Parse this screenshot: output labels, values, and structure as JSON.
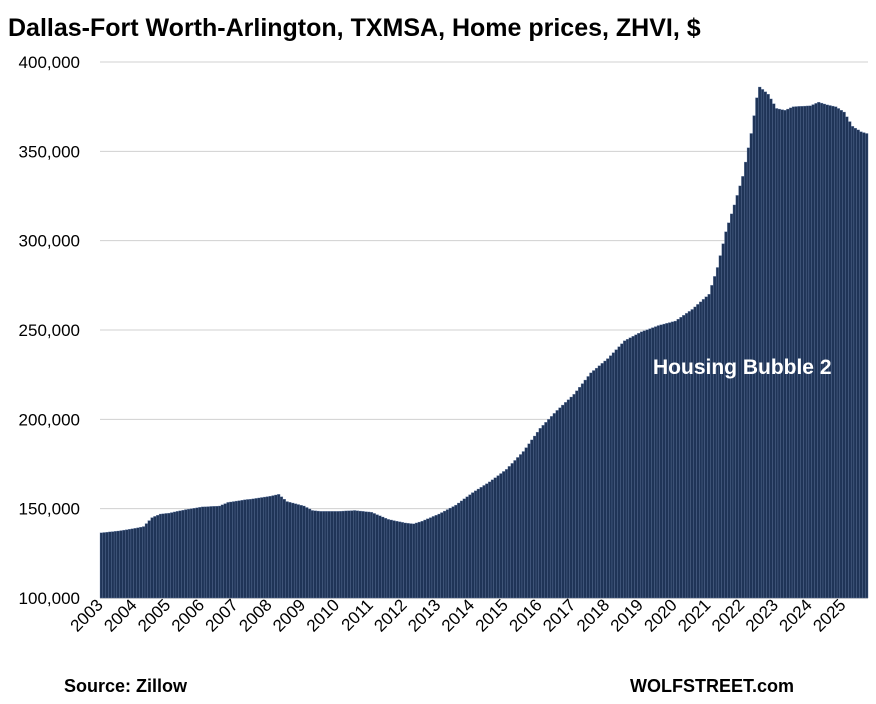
{
  "chart_data": {
    "type": "bar",
    "title": "Dallas-Fort Worth-Arlington, TXMSA, Home prices, ZHVI, $",
    "xlabel": "",
    "ylabel": "",
    "ylim": [
      100000,
      400000
    ],
    "y_ticks": [
      "400,000",
      "350,000",
      "300,000",
      "250,000",
      "200,000",
      "150,000",
      "100,000"
    ],
    "y_tick_values": [
      400000,
      350000,
      300000,
      250000,
      200000,
      150000,
      100000
    ],
    "x_ticks": [
      "2003",
      "2004",
      "2005",
      "2006",
      "2007",
      "2008",
      "2009",
      "2010",
      "2011",
      "2012",
      "2013",
      "2014",
      "2015",
      "2016",
      "2017",
      "2018",
      "2019",
      "2020",
      "2021",
      "2022",
      "2023",
      "2024",
      "2025"
    ],
    "x_range": [
      "2003-01",
      "2025-09"
    ],
    "frequency": "monthly",
    "grid": true,
    "bar_color": "#1f3457",
    "annotation": "Housing Bubble 2",
    "series": [
      {
        "points": [
          [
            "2003-01",
            136500
          ],
          [
            "2003-07",
            137500
          ],
          [
            "2004-01",
            139000
          ],
          [
            "2004-04",
            140000
          ],
          [
            "2004-07",
            145000
          ],
          [
            "2004-10",
            147000
          ],
          [
            "2005-01",
            147500
          ],
          [
            "2005-07",
            149500
          ],
          [
            "2006-01",
            151000
          ],
          [
            "2006-07",
            151500
          ],
          [
            "2006-10",
            153500
          ],
          [
            "2007-04",
            155000
          ],
          [
            "2007-07",
            155500
          ],
          [
            "2008-01",
            157000
          ],
          [
            "2008-04",
            158000
          ],
          [
            "2008-07",
            154000
          ],
          [
            "2009-01",
            151500
          ],
          [
            "2009-04",
            149000
          ],
          [
            "2009-07",
            148500
          ],
          [
            "2010-01",
            148500
          ],
          [
            "2010-07",
            149000
          ],
          [
            "2011-01",
            148000
          ],
          [
            "2011-07",
            144000
          ],
          [
            "2012-01",
            142000
          ],
          [
            "2012-04",
            141500
          ],
          [
            "2012-07",
            143000
          ],
          [
            "2013-01",
            147000
          ],
          [
            "2013-07",
            152000
          ],
          [
            "2014-01",
            159000
          ],
          [
            "2014-07",
            165000
          ],
          [
            "2015-01",
            172000
          ],
          [
            "2015-07",
            182000
          ],
          [
            "2016-01",
            195000
          ],
          [
            "2016-07",
            205000
          ],
          [
            "2017-01",
            214000
          ],
          [
            "2017-07",
            226000
          ],
          [
            "2018-01",
            234000
          ],
          [
            "2018-07",
            244000
          ],
          [
            "2019-01",
            249000
          ],
          [
            "2019-07",
            252500
          ],
          [
            "2020-01",
            255000
          ],
          [
            "2020-07",
            261500
          ],
          [
            "2021-01",
            270000
          ],
          [
            "2021-04",
            285000
          ],
          [
            "2021-07",
            305000
          ],
          [
            "2021-10",
            320000
          ],
          [
            "2022-01",
            336000
          ],
          [
            "2022-04",
            360000
          ],
          [
            "2022-06",
            380000
          ],
          [
            "2022-07",
            386000
          ],
          [
            "2022-10",
            382000
          ],
          [
            "2023-01",
            374000
          ],
          [
            "2023-04",
            373000
          ],
          [
            "2023-07",
            375000
          ],
          [
            "2024-01",
            375500
          ],
          [
            "2024-04",
            377500
          ],
          [
            "2024-07",
            376000
          ],
          [
            "2024-10",
            375000
          ],
          [
            "2025-01",
            372000
          ],
          [
            "2025-04",
            364000
          ],
          [
            "2025-07",
            361000
          ],
          [
            "2025-09",
            360000
          ]
        ]
      }
    ]
  },
  "footer": {
    "source": "Source: Zillow",
    "brand": "WOLFSTREET.com"
  }
}
